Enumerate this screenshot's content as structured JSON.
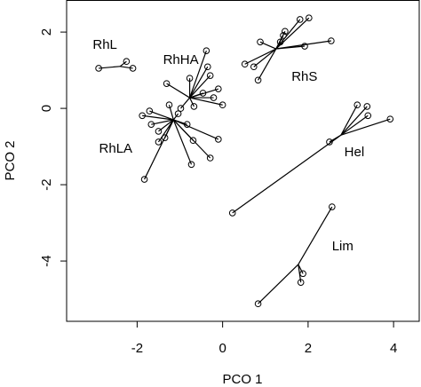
{
  "chart_data": {
    "type": "spider",
    "x_label": "PCO 1",
    "y_label": "PCO 2",
    "xlim": [
      -3.65,
      4.6
    ],
    "ylim": [
      -5.58,
      2.84
    ],
    "xticks": [
      -2,
      0,
      2,
      4
    ],
    "yticks": [
      -4,
      -2,
      0,
      2
    ],
    "color": "#000000",
    "series": [
      {
        "name": "RhL",
        "centroid_x": -2.4,
        "centroid_y": 1.1,
        "x": [
          -2.9,
          -2.25,
          -2.1
        ],
        "y": [
          1.05,
          1.23,
          1.05
        ]
      },
      {
        "name": "RhHA",
        "centroid_x": -0.77,
        "centroid_y": 0.28,
        "x": [
          -0.38,
          -0.35,
          -0.29,
          -0.77,
          -1.31,
          -0.1,
          -0.46,
          -0.21,
          -0.67,
          -0.98,
          0
        ],
        "y": [
          1.51,
          1.09,
          0.86,
          0.79,
          0.65,
          0.51,
          0.4,
          0.28,
          0.05,
          0,
          0.09
        ]
      },
      {
        "name": "RhS",
        "centroid_x": 1.25,
        "centroid_y": 1.56,
        "x": [
          2.02,
          1.81,
          1.46,
          1.42,
          1.35,
          0.88,
          1.92,
          2.54,
          0.52,
          0.73,
          0.83
        ],
        "y": [
          2.37,
          2.33,
          2.02,
          1.91,
          1.74,
          1.74,
          1.63,
          1.77,
          1.16,
          1.09,
          0.74
        ]
      },
      {
        "name": "RhLA",
        "centroid_x": -1.15,
        "centroid_y": -0.3,
        "x": [
          -1.88,
          -1.71,
          -1.67,
          -1.5,
          -1.35,
          -1.25,
          -1.04,
          -0.83,
          -1.5,
          -0.73,
          -0.29,
          -0.1,
          -0.69,
          -1.83
        ],
        "y": [
          -0.19,
          -0.07,
          -0.42,
          -0.6,
          -0.77,
          0.09,
          -0.14,
          -0.42,
          -0.88,
          -1.47,
          -1.3,
          -0.81,
          -0.84,
          -1.86
        ]
      },
      {
        "name": "Hel",
        "centroid_x": 2.77,
        "centroid_y": -0.7,
        "x": [
          3.15,
          3.38,
          3.4,
          3.92,
          2.5,
          0.23
        ],
        "y": [
          0.09,
          0.05,
          -0.19,
          -0.28,
          -0.88,
          -2.74
        ]
      },
      {
        "name": "Lim",
        "centroid_x": 1.77,
        "centroid_y": -4.09,
        "x": [
          2.56,
          1.88,
          1.83,
          0.83
        ],
        "y": [
          -2.58,
          -4.33,
          -4.56,
          -5.12
        ]
      }
    ]
  }
}
